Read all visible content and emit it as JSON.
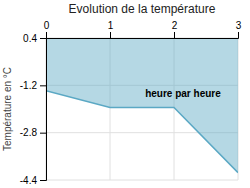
{
  "chart_data": {
    "type": "area",
    "title": "Evolution de la température",
    "y_label": "Température en °C",
    "annotations": [
      {
        "text": "heure par heure",
        "x": 1.55,
        "y": -1.5
      }
    ],
    "x": [
      0,
      1,
      2,
      3
    ],
    "values": [
      -1.38,
      -1.95,
      -1.95,
      -4.15
    ],
    "color": "#5ba8c4",
    "xlim": [
      0,
      3
    ],
    "ylim": [
      -4.4,
      0.4
    ],
    "xticks": [
      0,
      1,
      2,
      3
    ],
    "yticks": [
      0.4,
      -1.2,
      -2.8,
      -4.4
    ],
    "grid": true
  }
}
